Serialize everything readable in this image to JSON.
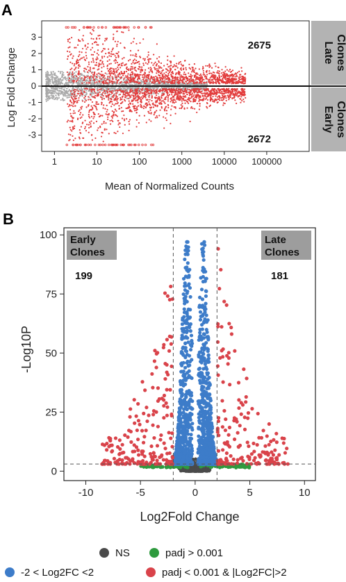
{
  "panel_a": {
    "label": "A",
    "count_up": "2675",
    "count_down": "2672",
    "strip_top": [
      "Late",
      "Clones"
    ],
    "strip_bottom": [
      "Early",
      "Clones"
    ]
  },
  "panel_b": {
    "label": "B",
    "box_left": [
      "Early",
      "Clones"
    ],
    "box_right": [
      "Late",
      "Clones"
    ],
    "count_left": "199",
    "count_right": "181"
  },
  "legend": {
    "items": [
      {
        "label": "NS",
        "color": "#4a4a4a"
      },
      {
        "label": "padj > 0.001",
        "color": "#2e9a3e"
      },
      {
        "label": "-2 < Log2FC <2",
        "color": "#3d7cc9"
      },
      {
        "label": "padj < 0.001 & |Log2FC|>2",
        "color": "#d9434a"
      }
    ]
  },
  "chart_data": [
    {
      "type": "scatter",
      "title": "",
      "xlabel": "Mean of Normalized Counts",
      "ylabel": "Log Fold Change",
      "x_scale": "log10",
      "xlim": [
        0.5,
        1000000
      ],
      "ylim": [
        -4,
        4
      ],
      "x_ticks": [
        "1",
        "10",
        "100",
        "1000",
        "10000",
        "100000"
      ],
      "y_ticks": [
        "-3",
        "-2",
        "-1",
        "0",
        "1",
        "2",
        "3"
      ],
      "series": [
        {
          "color": "#a9a9a9",
          "description_points": "grey non-significant points clustered around 0"
        },
        {
          "color": "#e23b3b",
          "description_points": "red significant points"
        }
      ],
      "counts": {
        "up": 2675,
        "down": 2672
      },
      "reference_line_y": 0,
      "capped_values": [
        3.6,
        -3.6
      ]
    },
    {
      "type": "scatter",
      "title": "",
      "xlabel": "Log2Fold Change",
      "ylabel": "-Log10P",
      "xlim": [
        -12,
        11
      ],
      "ylim": [
        -4,
        103
      ],
      "x_ticks": [
        "-10",
        "-5",
        "0",
        "5",
        "10"
      ],
      "y_ticks": [
        "0",
        "25",
        "50",
        "75",
        "100"
      ],
      "thresholds": {
        "x": [
          -2,
          2
        ],
        "y": 3
      },
      "counts": {
        "left": 199,
        "right": 181
      },
      "series": [
        {
          "name": "NS",
          "color": "#4a4a4a"
        },
        {
          "name": "padj > 0.001",
          "color": "#2e9a3e"
        },
        {
          "name": "-2 < Log2FC <2",
          "color": "#3d7cc9"
        },
        {
          "name": "padj < 0.001 & |Log2FC|>2",
          "color": "#d9434a"
        }
      ],
      "legend_position": "bottom"
    }
  ]
}
